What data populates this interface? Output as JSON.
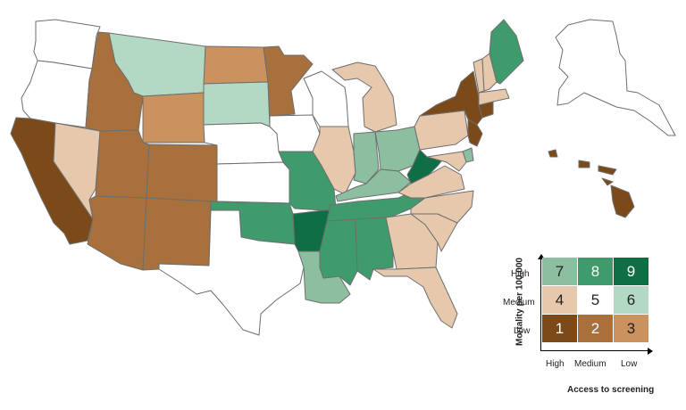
{
  "colors": {
    "c1": "#7c4a19",
    "c2": "#a8703c",
    "c3": "#c9925f",
    "c4": "#e6c9ad",
    "c5": "#ffffff",
    "c6": "#b3d9c4",
    "c7": "#8cbf9f",
    "c8": "#3f9a6c",
    "c9": "#0f6e43"
  },
  "state_categories": {
    "WA": 5,
    "OR": 5,
    "CA": 1,
    "NV": 4,
    "ID": 2,
    "MT": 6,
    "WY": 3,
    "UT": 2,
    "AZ": 2,
    "CO": 2,
    "NM": 2,
    "ND": 3,
    "SD": 6,
    "NE": 5,
    "KS": 5,
    "OK": 8,
    "TX": 5,
    "MN": 2,
    "IA": 5,
    "MO": 8,
    "AR": 9,
    "LA": 7,
    "WI": 5,
    "IL": 4,
    "MI": 4,
    "IN": 7,
    "OH": 7,
    "KY": 7,
    "TN": 8,
    "MS": 8,
    "AL": 8,
    "GA": 4,
    "FL": 4,
    "SC": 4,
    "NC": 4,
    "VA": 4,
    "WV": 9,
    "PA": 4,
    "NY": 1,
    "ME": 8,
    "NH": 4,
    "VT": 4,
    "MA": 4,
    "NJ": 1,
    "CT": 1,
    "DE": 7,
    "MD": 4,
    "AK": 5,
    "HI": 1
  },
  "legend": {
    "y_axis_title": "Mortality per 100,000",
    "x_axis_title": "Access to screening",
    "y_labels": [
      "High",
      "Medium",
      "Low"
    ],
    "x_labels": [
      "High",
      "Medium",
      "Low"
    ],
    "grid": [
      [
        {
          "n": "7",
          "color": "#8cbf9f"
        },
        {
          "n": "8",
          "color": "#3f9a6c"
        },
        {
          "n": "9",
          "color": "#0f6e43"
        }
      ],
      [
        {
          "n": "4",
          "color": "#e6c9ad"
        },
        {
          "n": "5",
          "color": "#ffffff"
        },
        {
          "n": "6",
          "color": "#b3d9c4"
        }
      ],
      [
        {
          "n": "1",
          "color": "#7c4a19"
        },
        {
          "n": "2",
          "color": "#a8703c"
        },
        {
          "n": "3",
          "color": "#c9925f"
        }
      ]
    ],
    "text_light": "#ffffff",
    "text_dark": "#222222"
  }
}
